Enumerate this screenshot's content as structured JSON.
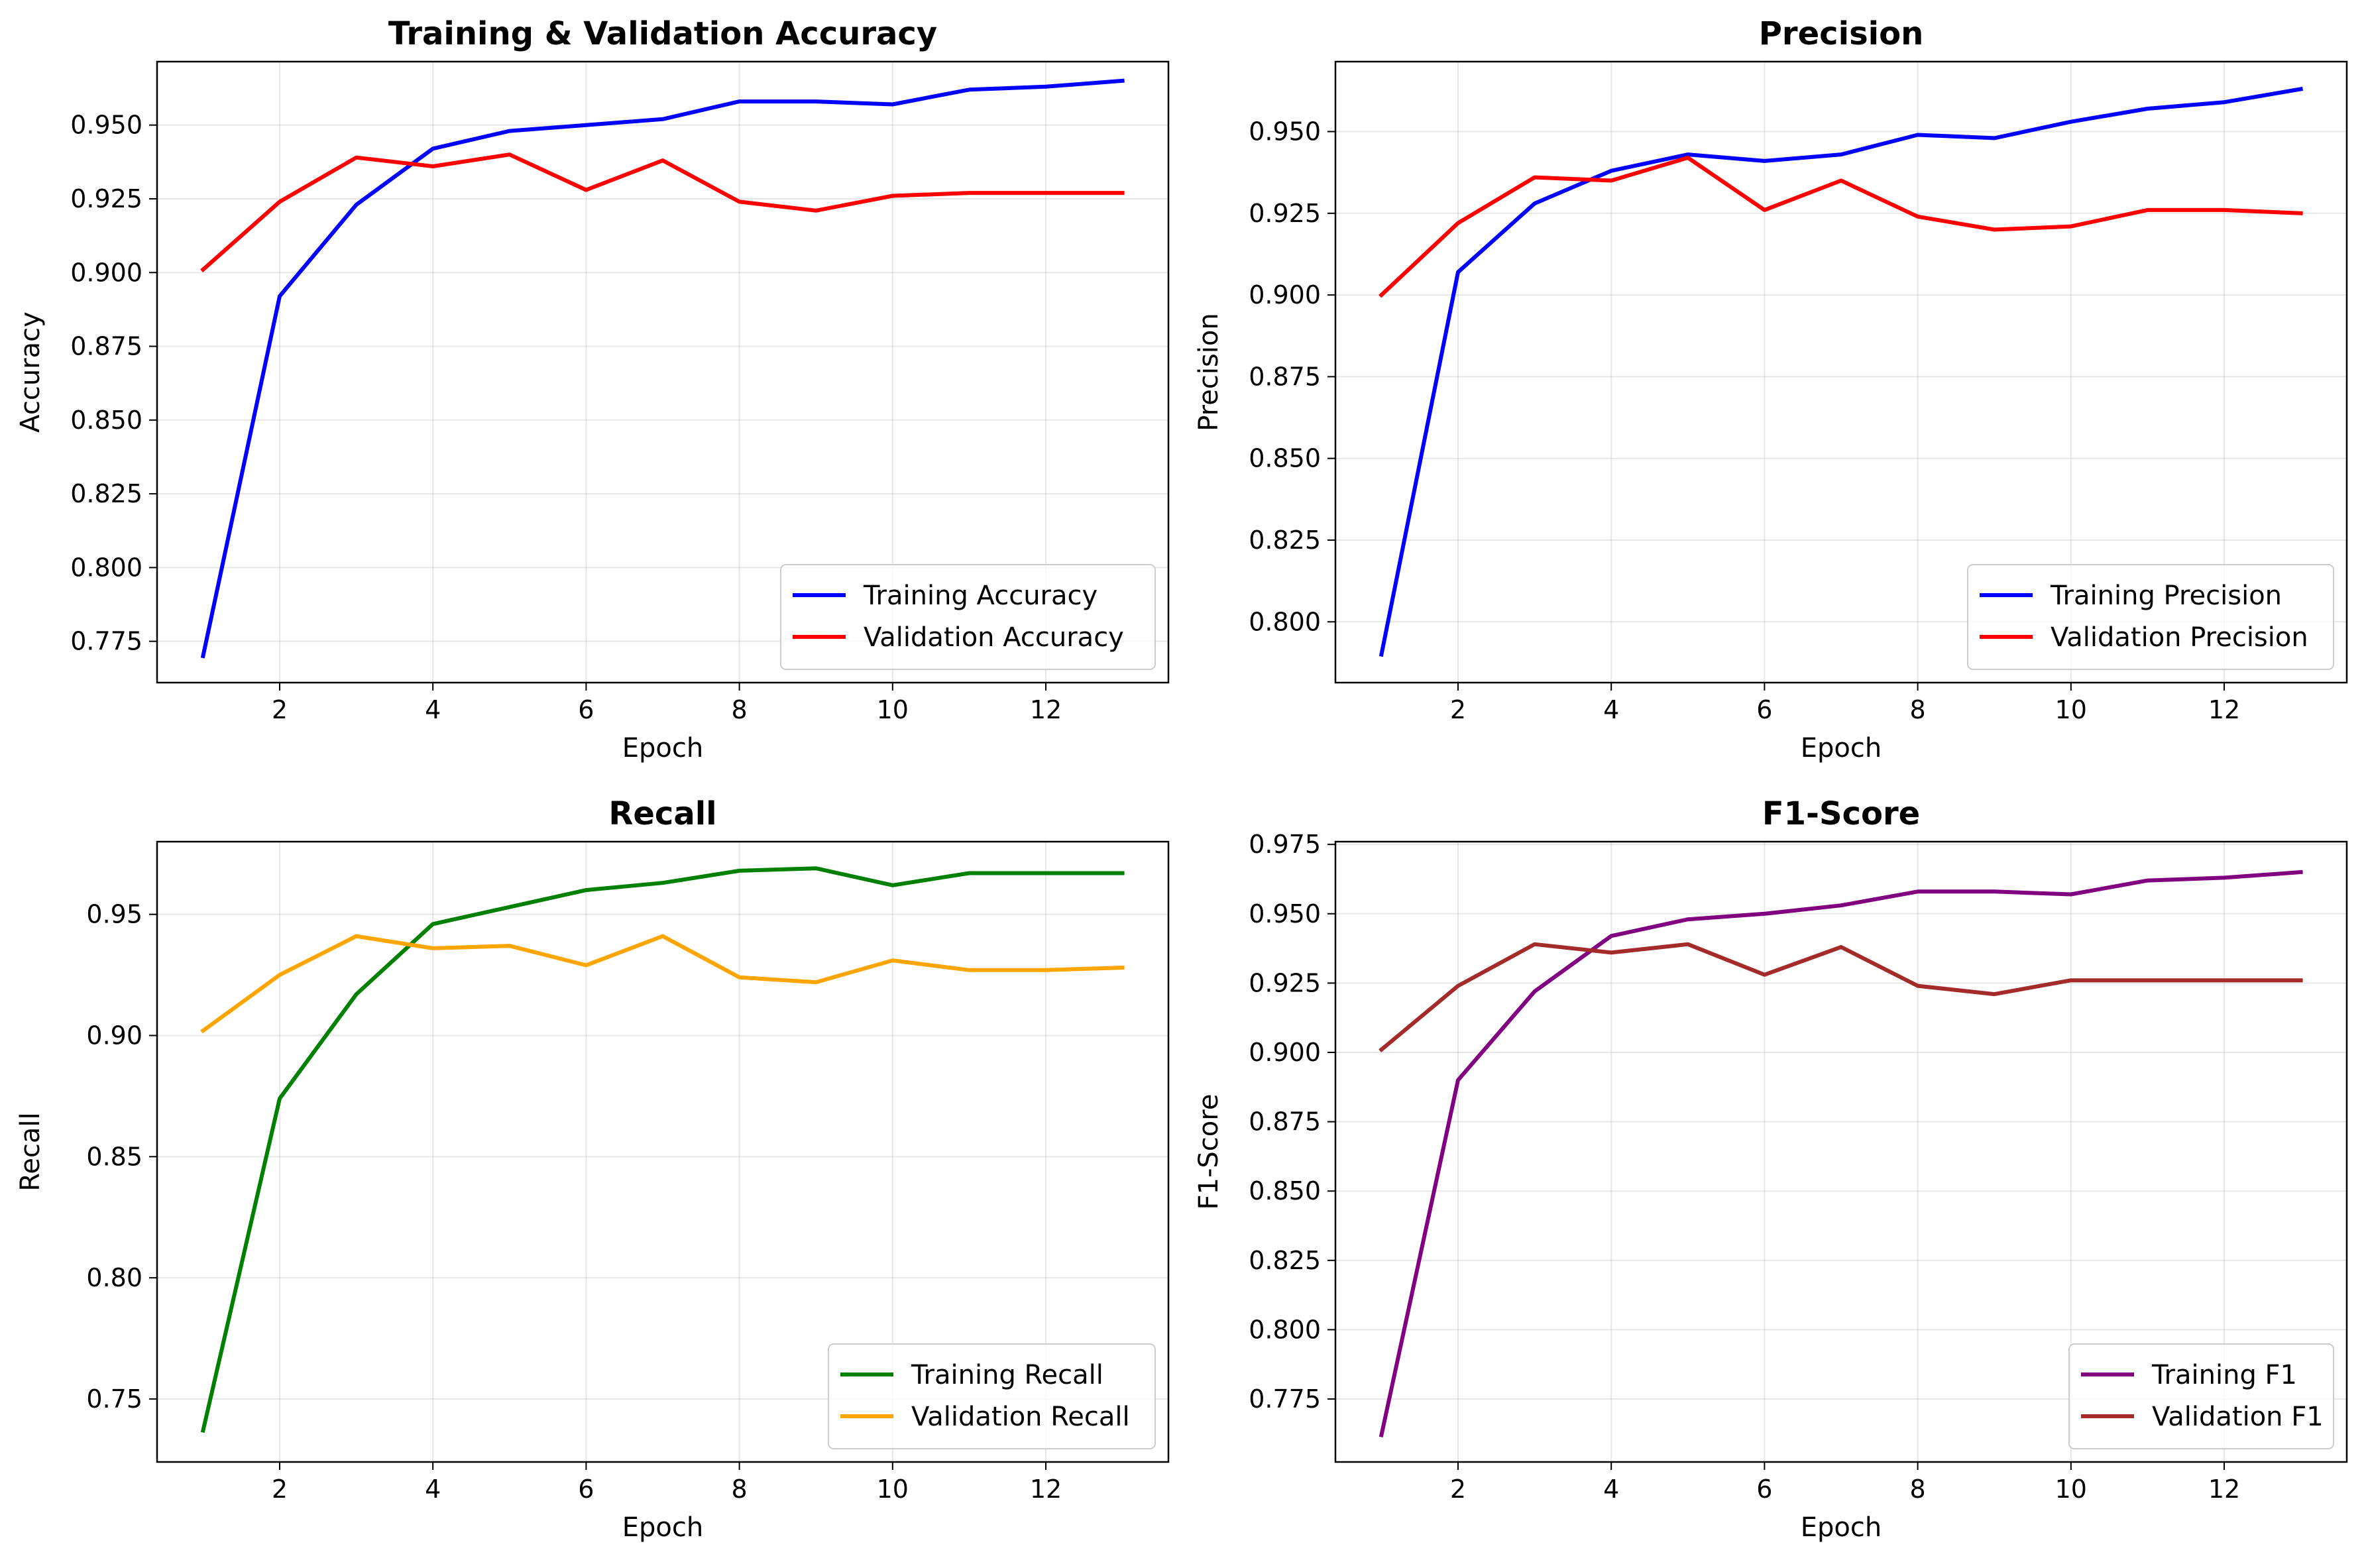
{
  "chart_data": [
    {
      "type": "line",
      "title": "Training & Validation Accuracy",
      "xlabel": "Epoch",
      "ylabel": "Accuracy",
      "xlim": [
        0.4,
        13.6
      ],
      "ylim": [
        0.761,
        0.9715
      ],
      "xticks": [
        "2",
        "4",
        "6",
        "8",
        "10",
        "12"
      ],
      "yticks": [
        "0.775",
        "0.800",
        "0.825",
        "0.850",
        "0.875",
        "0.900",
        "0.925",
        "0.950"
      ],
      "grid": true,
      "legend_position": "lower right",
      "x": [
        1,
        2,
        3,
        4,
        5,
        6,
        7,
        8,
        9,
        10,
        11,
        12,
        13
      ],
      "series": [
        {
          "name": "Training Accuracy",
          "color": "#0000ff",
          "values": [
            0.77,
            0.892,
            0.923,
            0.942,
            0.948,
            0.95,
            0.952,
            0.958,
            0.958,
            0.957,
            0.962,
            0.963,
            0.965
          ]
        },
        {
          "name": "Validation Accuracy",
          "color": "#ff0000",
          "values": [
            0.901,
            0.924,
            0.939,
            0.936,
            0.94,
            0.928,
            0.938,
            0.924,
            0.921,
            0.926,
            0.927,
            0.927,
            0.927
          ]
        }
      ]
    },
    {
      "type": "line",
      "title": "Precision",
      "xlabel": "Epoch",
      "ylabel": "Precision",
      "xlim": [
        0.4,
        13.6
      ],
      "ylim": [
        0.7814,
        0.9714
      ],
      "xticks": [
        "2",
        "4",
        "6",
        "8",
        "10",
        "12"
      ],
      "yticks": [
        "0.800",
        "0.825",
        "0.850",
        "0.875",
        "0.900",
        "0.925",
        "0.950"
      ],
      "grid": true,
      "legend_position": "lower right",
      "x": [
        1,
        2,
        3,
        4,
        5,
        6,
        7,
        8,
        9,
        10,
        11,
        12,
        13
      ],
      "series": [
        {
          "name": "Training Precision",
          "color": "#0000ff",
          "values": [
            0.79,
            0.907,
            0.928,
            0.938,
            0.943,
            0.941,
            0.943,
            0.949,
            0.948,
            0.953,
            0.957,
            0.959,
            0.963
          ]
        },
        {
          "name": "Validation Precision",
          "color": "#ff0000",
          "values": [
            0.9,
            0.922,
            0.936,
            0.935,
            0.942,
            0.926,
            0.935,
            0.924,
            0.92,
            0.921,
            0.926,
            0.926,
            0.925
          ]
        }
      ]
    },
    {
      "type": "line",
      "title": "Recall",
      "xlabel": "Epoch",
      "ylabel": "Recall",
      "xlim": [
        0.4,
        13.6
      ],
      "ylim": [
        0.724,
        0.98
      ],
      "xticks": [
        "2",
        "4",
        "6",
        "8",
        "10",
        "12"
      ],
      "yticks": [
        "0.75",
        "0.80",
        "0.85",
        "0.90",
        "0.95"
      ],
      "grid": true,
      "legend_position": "lower right",
      "x": [
        1,
        2,
        3,
        4,
        5,
        6,
        7,
        8,
        9,
        10,
        11,
        12,
        13
      ],
      "series": [
        {
          "name": "Training Recall",
          "color": "#008000",
          "values": [
            0.737,
            0.874,
            0.917,
            0.946,
            0.953,
            0.96,
            0.963,
            0.968,
            0.969,
            0.962,
            0.967,
            0.967,
            0.967
          ]
        },
        {
          "name": "Validation Recall",
          "color": "#ffa500",
          "values": [
            0.902,
            0.925,
            0.941,
            0.936,
            0.937,
            0.929,
            0.941,
            0.924,
            0.922,
            0.931,
            0.927,
            0.927,
            0.928
          ]
        }
      ]
    },
    {
      "type": "line",
      "title": "F1-Score",
      "xlabel": "Epoch",
      "ylabel": "F1-Score",
      "xlim": [
        0.4,
        13.6
      ],
      "ylim": [
        0.7523,
        0.976
      ],
      "xticks": [
        "2",
        "4",
        "6",
        "8",
        "10",
        "12"
      ],
      "yticks": [
        "0.775",
        "0.800",
        "0.825",
        "0.850",
        "0.875",
        "0.900",
        "0.925",
        "0.950",
        "0.975"
      ],
      "grid": true,
      "legend_position": "lower right",
      "x": [
        1,
        2,
        3,
        4,
        5,
        6,
        7,
        8,
        9,
        10,
        11,
        12,
        13
      ],
      "series": [
        {
          "name": "Training F1",
          "color": "#800080",
          "values": [
            0.762,
            0.89,
            0.922,
            0.942,
            0.948,
            0.95,
            0.953,
            0.958,
            0.958,
            0.957,
            0.962,
            0.963,
            0.965
          ]
        },
        {
          "name": "Validation F1",
          "color": "#a52a2a",
          "values": [
            0.901,
            0.924,
            0.939,
            0.936,
            0.939,
            0.928,
            0.938,
            0.924,
            0.921,
            0.926,
            0.926,
            0.926,
            0.926
          ]
        }
      ]
    }
  ]
}
